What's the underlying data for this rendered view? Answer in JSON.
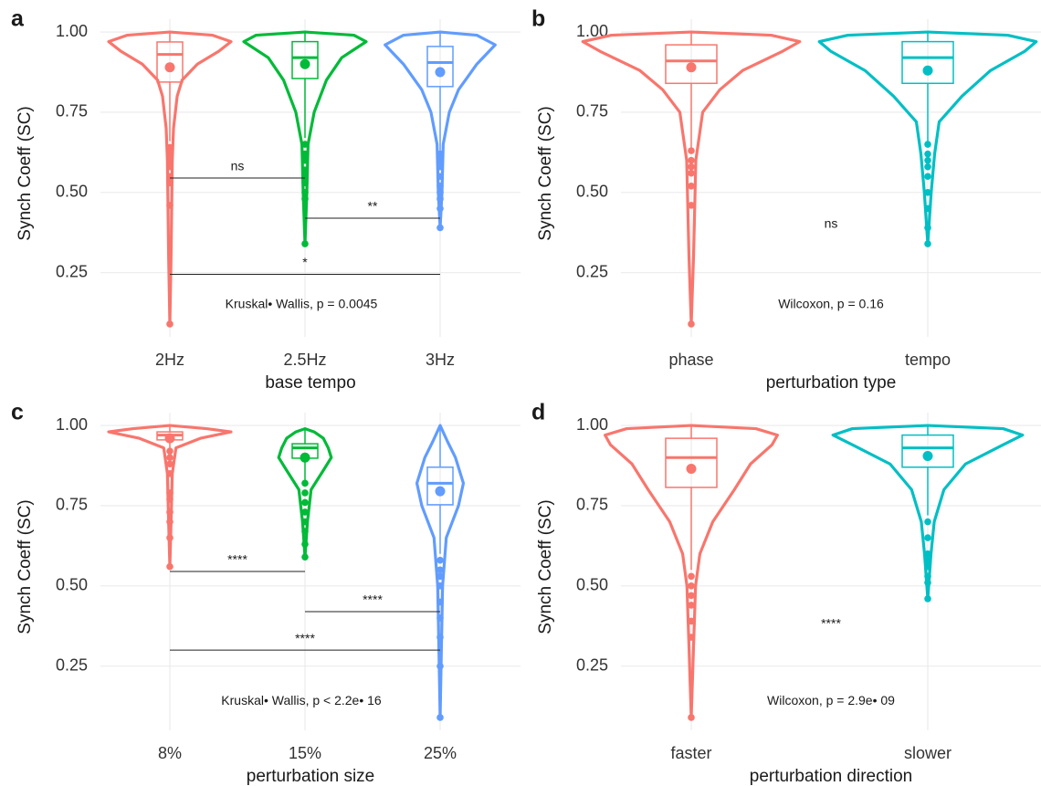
{
  "chart_data": [
    {
      "type": "violin",
      "panel_label": "a",
      "xlabel": "base tempo",
      "ylabel": "Synch Coeff (SC)",
      "categories": [
        "2Hz",
        "2.5Hz",
        "3Hz"
      ],
      "colors": [
        "#F8766D",
        "#00BA38",
        "#619CFF"
      ],
      "ylim": [
        0.05,
        1.04
      ],
      "yticks": [
        {
          "value": 1,
          "label": "1.00"
        },
        0.75,
        {
          "value": 0.5,
          "label": "0.50"
        },
        0.25
      ],
      "grid": true,
      "groups": [
        {
          "density": [
            [
              0.09,
              0
            ],
            [
              0.3,
              0.02
            ],
            [
              0.6,
              0.04
            ],
            [
              0.7,
              0.06
            ],
            [
              0.8,
              0.12
            ],
            [
              0.85,
              0.2
            ],
            [
              0.9,
              0.45
            ],
            [
              0.94,
              0.8
            ],
            [
              0.97,
              1.0
            ],
            [
              0.99,
              0.7
            ],
            [
              1.0,
              0
            ]
          ],
          "whiskers": [
            0.66,
            1.0
          ],
          "box": [
            0.844,
            0.93,
            0.969
          ],
          "mean": 0.89,
          "outliers": [
            0.09,
            0.46,
            0.53,
            0.55,
            0.58,
            0.6,
            0.62,
            0.64
          ]
        },
        {
          "density": [
            [
              0.34,
              0
            ],
            [
              0.5,
              0.03
            ],
            [
              0.65,
              0.05
            ],
            [
              0.75,
              0.15
            ],
            [
              0.85,
              0.35
            ],
            [
              0.92,
              0.6
            ],
            [
              0.97,
              1.0
            ],
            [
              0.99,
              0.8
            ],
            [
              1.0,
              0
            ]
          ],
          "whiskers": [
            0.67,
            1.0
          ],
          "box": [
            0.855,
            0.92,
            0.97
          ],
          "mean": 0.9,
          "outliers": [
            0.34,
            0.48,
            0.5,
            0.53,
            0.55,
            0.57,
            0.6,
            0.62,
            0.65
          ]
        },
        {
          "density": [
            [
              0.39,
              0
            ],
            [
              0.5,
              0.03
            ],
            [
              0.65,
              0.05
            ],
            [
              0.75,
              0.15
            ],
            [
              0.82,
              0.3
            ],
            [
              0.9,
              0.6
            ],
            [
              0.96,
              0.9
            ],
            [
              0.99,
              0.6
            ],
            [
              1.0,
              0
            ]
          ],
          "whiskers": [
            0.63,
            1.0
          ],
          "box": [
            0.83,
            0.905,
            0.955
          ],
          "mean": 0.875,
          "outliers": [
            0.39,
            0.45,
            0.48,
            0.5,
            0.52,
            0.55,
            0.58,
            0.6,
            0.62
          ]
        }
      ],
      "comparisons": [
        {
          "from": "2Hz",
          "to": "2.5Hz",
          "y": 0.545,
          "label": "ns"
        },
        {
          "from": "2.5Hz",
          "to": "3Hz",
          "y": 0.42,
          "label": "**"
        },
        {
          "from": "2Hz",
          "to": "3Hz",
          "y": 0.245,
          "label": "*"
        }
      ],
      "annotations": [
        {
          "text": "Kruskal• Wallis, p = 0.0045",
          "y": 0.15
        }
      ]
    },
    {
      "type": "violin",
      "panel_label": "b",
      "xlabel": "perturbation type",
      "ylabel": "Synch Coeff (SC)",
      "categories": [
        "phase",
        "tempo"
      ],
      "colors": [
        "#F8766D",
        "#00BFC4"
      ],
      "ylim": [
        0.05,
        1.04
      ],
      "yticks": [
        {
          "value": 1,
          "label": "1.00"
        },
        0.75,
        {
          "value": 0.5,
          "label": "0.50"
        },
        0.25
      ],
      "grid": true,
      "groups": [
        {
          "density": [
            [
              0.09,
              0
            ],
            [
              0.3,
              0.02
            ],
            [
              0.6,
              0.04
            ],
            [
              0.75,
              0.1
            ],
            [
              0.82,
              0.25
            ],
            [
              0.88,
              0.45
            ],
            [
              0.94,
              0.8
            ],
            [
              0.97,
              0.95
            ],
            [
              0.99,
              0.7
            ],
            [
              1.0,
              0
            ]
          ],
          "whiskers": [
            0.64,
            1.0
          ],
          "box": [
            0.84,
            0.91,
            0.96
          ],
          "mean": 0.89,
          "outliers": [
            0.09,
            0.46,
            0.52,
            0.56,
            0.58,
            0.6,
            0.63
          ]
        },
        {
          "density": [
            [
              0.34,
              0
            ],
            [
              0.5,
              0.03
            ],
            [
              0.62,
              0.06
            ],
            [
              0.72,
              0.1
            ],
            [
              0.8,
              0.3
            ],
            [
              0.88,
              0.55
            ],
            [
              0.94,
              0.85
            ],
            [
              0.97,
              0.95
            ],
            [
              0.99,
              0.7
            ],
            [
              1.0,
              0
            ]
          ],
          "whiskers": [
            0.66,
            1.0
          ],
          "box": [
            0.84,
            0.92,
            0.97
          ],
          "mean": 0.88,
          "outliers": [
            0.34,
            0.39,
            0.45,
            0.5,
            0.55,
            0.58,
            0.6,
            0.62,
            0.65
          ]
        }
      ],
      "comparisons": [],
      "annotations": [
        {
          "text": "ns",
          "y": 0.4
        },
        {
          "text": "Wilcoxon, p = 0.16",
          "y": 0.15
        }
      ]
    },
    {
      "type": "violin",
      "panel_label": "c",
      "xlabel": "perturbation size",
      "ylabel": "Synch Coeff (SC)",
      "categories": [
        "8%",
        "15%",
        "25%"
      ],
      "colors": [
        "#F8766D",
        "#00BA38",
        "#619CFF"
      ],
      "ylim": [
        0.05,
        1.04
      ],
      "yticks": [
        {
          "value": 1,
          "label": "1.00"
        },
        0.75,
        {
          "value": 0.5,
          "label": "0.50"
        },
        0.25
      ],
      "grid": true,
      "groups": [
        {
          "density": [
            [
              0.56,
              0
            ],
            [
              0.7,
              0.02
            ],
            [
              0.85,
              0.04
            ],
            [
              0.93,
              0.1
            ],
            [
              0.96,
              0.5
            ],
            [
              0.98,
              1.0
            ],
            [
              0.99,
              0.6
            ],
            [
              1.0,
              0
            ]
          ],
          "whiskers": [
            0.93,
            1.0
          ],
          "box": [
            0.955,
            0.97,
            0.98
          ],
          "mean": 0.96,
          "outliers": [
            0.56,
            0.65,
            0.7,
            0.73,
            0.77,
            0.79,
            0.85,
            0.88,
            0.9,
            0.92
          ]
        },
        {
          "density": [
            [
              0.59,
              0
            ],
            [
              0.7,
              0.04
            ],
            [
              0.8,
              0.1
            ],
            [
              0.86,
              0.3
            ],
            [
              0.9,
              0.43
            ],
            [
              0.93,
              0.38
            ],
            [
              0.96,
              0.3
            ],
            [
              0.98,
              0.15
            ],
            [
              0.99,
              0
            ]
          ],
          "whiskers": [
            0.83,
            0.99
          ],
          "box": [
            0.898,
            0.93,
            0.943
          ],
          "mean": 0.9,
          "outliers": [
            0.59,
            0.63,
            0.67,
            0.7,
            0.73,
            0.76,
            0.79,
            0.82
          ]
        },
        {
          "density": [
            [
              0.09,
              0
            ],
            [
              0.3,
              0.02
            ],
            [
              0.5,
              0.04
            ],
            [
              0.65,
              0.1
            ],
            [
              0.75,
              0.3
            ],
            [
              0.82,
              0.38
            ],
            [
              0.9,
              0.25
            ],
            [
              0.95,
              0.12
            ],
            [
              1.0,
              0
            ]
          ],
          "whiskers": [
            0.6,
            1.0
          ],
          "box": [
            0.753,
            0.82,
            0.87
          ],
          "mean": 0.795,
          "outliers": [
            0.09,
            0.25,
            0.34,
            0.4,
            0.45,
            0.5,
            0.53,
            0.55,
            0.58
          ]
        }
      ],
      "comparisons": [
        {
          "from": "8%",
          "to": "15%",
          "y": 0.545,
          "label": "****"
        },
        {
          "from": "15%",
          "to": "25%",
          "y": 0.42,
          "label": "****"
        },
        {
          "from": "8%",
          "to": "25%",
          "y": 0.3,
          "label": "****"
        }
      ],
      "annotations": [
        {
          "text": "Kruskal• Wallis, p < 2.2e• 16",
          "y": 0.14
        }
      ]
    },
    {
      "type": "violin",
      "panel_label": "d",
      "xlabel": "perturbation direction",
      "ylabel": "Synch Coeff (SC)",
      "categories": [
        "faster",
        "slower"
      ],
      "colors": [
        "#F8766D",
        "#00BFC4"
      ],
      "ylim": [
        0.05,
        1.04
      ],
      "yticks": [
        {
          "value": 1,
          "label": "1.00"
        },
        0.75,
        {
          "value": 0.5,
          "label": "0.50"
        },
        0.25
      ],
      "grid": true,
      "groups": [
        {
          "density": [
            [
              0.09,
              0
            ],
            [
              0.3,
              0.02
            ],
            [
              0.5,
              0.04
            ],
            [
              0.6,
              0.08
            ],
            [
              0.7,
              0.2
            ],
            [
              0.8,
              0.4
            ],
            [
              0.88,
              0.55
            ],
            [
              0.94,
              0.75
            ],
            [
              0.97,
              0.8
            ],
            [
              0.99,
              0.6
            ],
            [
              1.0,
              0
            ]
          ],
          "whiskers": [
            0.55,
            1.0
          ],
          "box": [
            0.807,
            0.9,
            0.96
          ],
          "mean": 0.865,
          "outliers": [
            0.09,
            0.34,
            0.39,
            0.44,
            0.47,
            0.5,
            0.53
          ]
        },
        {
          "density": [
            [
              0.46,
              0
            ],
            [
              0.6,
              0.03
            ],
            [
              0.7,
              0.06
            ],
            [
              0.8,
              0.15
            ],
            [
              0.88,
              0.35
            ],
            [
              0.94,
              0.7
            ],
            [
              0.97,
              0.88
            ],
            [
              0.99,
              0.7
            ],
            [
              1.0,
              0
            ]
          ],
          "whiskers": [
            0.72,
            1.0
          ],
          "box": [
            0.87,
            0.93,
            0.97
          ],
          "mean": 0.905,
          "outliers": [
            0.46,
            0.51,
            0.53,
            0.56,
            0.58,
            0.6,
            0.65,
            0.7
          ]
        }
      ],
      "comparisons": [],
      "annotations": [
        {
          "text": "****",
          "y": 0.38
        },
        {
          "text": "Wilcoxon, p = 2.9e• 09",
          "y": 0.14
        }
      ]
    }
  ]
}
